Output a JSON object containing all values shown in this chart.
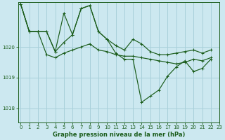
{
  "title": "Graphe pression niveau de la mer (hPa)",
  "bg_color": "#cce8f0",
  "grid_color": "#a8d0da",
  "line_color": "#1a5c1a",
  "ylim": [
    1017.55,
    1021.45
  ],
  "xlim": [
    -0.3,
    23
  ],
  "yticks": [
    1018,
    1019,
    1020
  ],
  "xticks": [
    0,
    1,
    2,
    3,
    4,
    5,
    6,
    7,
    8,
    9,
    10,
    11,
    12,
    13,
    14,
    15,
    16,
    17,
    18,
    19,
    20,
    21,
    22,
    23
  ],
  "series": [
    {
      "x": [
        0,
        1,
        2,
        3,
        4,
        5,
        6,
        7,
        8,
        9,
        10,
        11,
        12,
        13,
        14,
        15,
        16,
        17,
        18,
        19,
        20,
        21,
        22
      ],
      "y": [
        1021.4,
        1020.5,
        1020.5,
        1019.75,
        1019.65,
        1019.8,
        1019.9,
        1020.0,
        1020.1,
        1019.9,
        1019.85,
        1019.75,
        1019.7,
        1019.7,
        1019.65,
        1019.6,
        1019.55,
        1019.5,
        1019.45,
        1019.5,
        1019.6,
        1019.55,
        1019.65
      ]
    },
    {
      "x": [
        0,
        1,
        2,
        3,
        4,
        5,
        6,
        7,
        8,
        9,
        10,
        11,
        12,
        13,
        14,
        15,
        16,
        17,
        18,
        19,
        20,
        21,
        22
      ],
      "y": [
        1021.4,
        1020.5,
        1020.5,
        1020.5,
        1019.85,
        1021.1,
        1020.4,
        1021.25,
        1021.35,
        1020.5,
        1020.25,
        1020.05,
        1019.9,
        1020.25,
        1020.1,
        1019.85,
        1019.75,
        1019.75,
        1019.8,
        1019.85,
        1019.9,
        1019.8,
        1019.9
      ]
    },
    {
      "x": [
        0,
        1,
        2,
        3,
        4,
        5,
        6,
        7,
        8,
        9,
        10,
        11,
        12,
        13,
        14,
        15,
        16,
        17,
        18,
        19,
        20,
        21,
        22
      ],
      "y": [
        1021.4,
        1020.5,
        1020.5,
        1020.5,
        1019.85,
        1020.15,
        1020.4,
        1021.25,
        1021.35,
        1020.5,
        1020.25,
        1019.8,
        1019.6,
        1019.6,
        1018.2,
        1018.4,
        1018.6,
        1019.05,
        1019.35,
        1019.55,
        1019.2,
        1019.3,
        1019.6
      ]
    }
  ]
}
